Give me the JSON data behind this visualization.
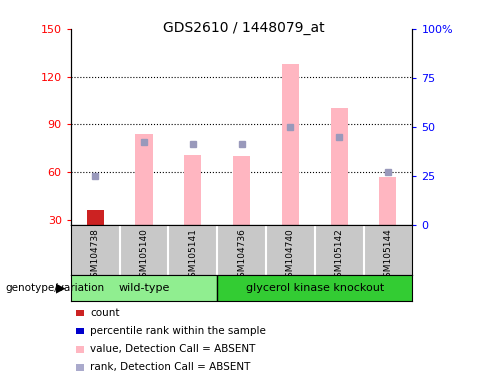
{
  "title": "GDS2610 / 1448079_at",
  "samples": [
    "GSM104738",
    "GSM105140",
    "GSM105141",
    "GSM104736",
    "GSM104740",
    "GSM105142",
    "GSM105144"
  ],
  "wt_count": 3,
  "gk_count": 4,
  "left_ylim": [
    27,
    150
  ],
  "right_ylim": [
    0,
    100
  ],
  "left_yticks": [
    30,
    60,
    90,
    120,
    150
  ],
  "right_yticks": [
    0,
    25,
    50,
    75,
    100
  ],
  "right_yticklabels": [
    "0",
    "25",
    "50",
    "75",
    "100%"
  ],
  "pink_bars_top": [
    36,
    84,
    71,
    70,
    128,
    100,
    57
  ],
  "pink_bars_bottom": [
    27,
    27,
    27,
    27,
    27,
    27,
    27
  ],
  "blue_sq_right_pct": [
    25,
    42,
    41,
    41,
    50,
    45,
    27
  ],
  "blue_sq_present": [
    true,
    true,
    true,
    true,
    true,
    true,
    true
  ],
  "red_bar_top": [
    36,
    null,
    null,
    null,
    null,
    null,
    null
  ],
  "red_bar_bottom": [
    27,
    null,
    null,
    null,
    null,
    null,
    null
  ],
  "pink_bar_color": "#FFB6C1",
  "blue_sq_color": "#9999BB",
  "red_bar_color": "#CC2222",
  "bar_width": 0.35,
  "wt_color": "#90EE90",
  "gk_color": "#33CC33",
  "gray_color": "#C8C8C8",
  "legend_items": [
    {
      "color": "#CC2222",
      "label": "count"
    },
    {
      "color": "#0000CC",
      "label": "percentile rank within the sample"
    },
    {
      "color": "#FFB6C1",
      "label": "value, Detection Call = ABSENT"
    },
    {
      "color": "#AAAACC",
      "label": "rank, Detection Call = ABSENT"
    }
  ]
}
